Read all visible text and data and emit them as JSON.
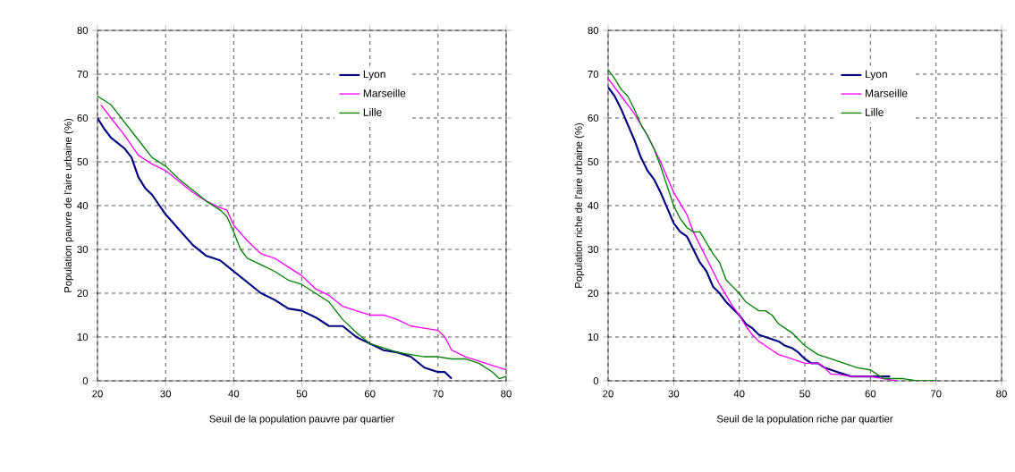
{
  "chart_data": [
    {
      "type": "line",
      "xlabel": "Seuil de la population pauvre par quartier",
      "ylabel": "Population pauvre de l'aire urbaine (%)",
      "xlim": [
        20,
        80
      ],
      "ylim": [
        0,
        80
      ],
      "xticks": [
        20,
        30,
        40,
        50,
        60,
        70,
        80
      ],
      "yticks": [
        0,
        10,
        20,
        30,
        40,
        50,
        60,
        70,
        80
      ],
      "grid": true,
      "legend": "top right",
      "marker": "none",
      "series": [
        {
          "name": "Lyon",
          "color": "#000080",
          "x": [
            20,
            21,
            22,
            24,
            25,
            26,
            27,
            28,
            30,
            32,
            34,
            36,
            38,
            40,
            42,
            44,
            46,
            48,
            50,
            52,
            54,
            56,
            58,
            60,
            62,
            64,
            66,
            68,
            70,
            71,
            72
          ],
          "values": [
            60,
            57.5,
            55.5,
            53,
            51,
            46.5,
            44,
            42.5,
            38,
            34.5,
            31,
            28.5,
            27.5,
            25,
            22.5,
            20,
            18.5,
            16.5,
            16,
            14.5,
            12.5,
            12.5,
            10,
            8.5,
            7,
            6.5,
            5.5,
            3,
            2,
            2,
            0.5
          ]
        },
        {
          "name": "Marseille",
          "color": "#ff00ff",
          "x": [
            20.5,
            22,
            24,
            26,
            28,
            30,
            32,
            34,
            36,
            38,
            39,
            40,
            42,
            44,
            46,
            48,
            50,
            52,
            54,
            56,
            58,
            60,
            62,
            64,
            66,
            68,
            70,
            71,
            72,
            74,
            76,
            78,
            80
          ],
          "values": [
            63,
            60,
            56,
            51.5,
            49.5,
            48,
            45.5,
            43,
            41,
            39.5,
            39,
            35.5,
            32,
            29,
            28,
            26,
            24,
            21,
            19.5,
            17,
            16,
            15,
            15,
            14,
            12.5,
            12,
            11.5,
            10,
            7,
            5.5,
            4.5,
            3.5,
            2.5
          ]
        },
        {
          "name": "Lille",
          "color": "#008000",
          "x": [
            20,
            22,
            24,
            26,
            28,
            30,
            32,
            34,
            36,
            38,
            39,
            40,
            41,
            42,
            44,
            46,
            48,
            50,
            52,
            54,
            56,
            58,
            60,
            62,
            64,
            66,
            68,
            70,
            72,
            74,
            76,
            78,
            79,
            80
          ],
          "values": [
            65,
            63,
            59,
            55,
            51,
            49,
            46,
            43.5,
            41,
            39,
            37.5,
            34,
            30,
            28,
            26.5,
            25,
            23,
            22,
            20,
            18,
            14,
            11,
            8.5,
            7.5,
            6.5,
            6,
            5.5,
            5.5,
            5,
            5,
            4,
            2,
            0.5,
            1
          ]
        }
      ]
    },
    {
      "type": "line",
      "xlabel": "Seuil de la population riche par quartier",
      "ylabel": "Population riche de l'aire urbaine (%)",
      "xlim": [
        20,
        80
      ],
      "ylim": [
        0,
        80
      ],
      "xticks": [
        20,
        30,
        40,
        50,
        60,
        70,
        80
      ],
      "yticks": [
        0,
        10,
        20,
        30,
        40,
        50,
        60,
        70,
        80
      ],
      "grid": true,
      "legend": "top right",
      "marker": "none",
      "series": [
        {
          "name": "Lyon",
          "color": "#000080",
          "x": [
            20,
            21,
            22,
            23,
            24,
            25,
            26,
            27,
            28,
            29,
            30,
            31,
            32,
            33,
            34,
            35,
            36,
            37,
            38,
            39,
            40,
            41,
            42,
            43,
            44,
            45,
            46,
            47,
            48,
            49,
            50,
            51,
            52,
            53,
            54,
            55,
            56,
            57,
            60,
            63
          ],
          "values": [
            67,
            65,
            62,
            58.5,
            55,
            51,
            48,
            46,
            43,
            39.5,
            36,
            34,
            33,
            30,
            27,
            25,
            21.5,
            20,
            18,
            16.5,
            15,
            13,
            12,
            10.5,
            10,
            9.5,
            9,
            8,
            7.5,
            6.5,
            5,
            4,
            4,
            3,
            2.5,
            2,
            1.5,
            1,
            1,
            1
          ]
        },
        {
          "name": "Marseille",
          "color": "#ff00ff",
          "x": [
            20,
            22,
            24,
            26,
            28,
            30,
            32,
            33,
            34,
            35,
            36,
            37,
            38,
            39,
            40,
            41,
            42,
            43,
            44,
            46,
            48,
            50,
            52,
            53,
            54,
            55,
            57,
            60,
            62,
            64
          ],
          "values": [
            69,
            65,
            61,
            56,
            50,
            43,
            38,
            34,
            31,
            28,
            25,
            22,
            19.5,
            17,
            15,
            12.5,
            10.5,
            9,
            8,
            6,
            5,
            4,
            4,
            3,
            1.5,
            1.5,
            1,
            1,
            0.5,
            0
          ]
        },
        {
          "name": "Lille",
          "color": "#008000",
          "x": [
            20,
            21,
            22,
            23,
            24,
            25,
            26,
            27,
            28,
            29,
            30,
            31,
            32,
            33,
            34,
            35,
            36,
            37,
            38,
            39,
            40,
            41,
            42,
            43,
            44,
            45,
            46,
            48,
            49,
            50,
            52,
            54,
            56,
            58,
            60,
            61,
            62,
            64,
            65,
            67,
            70
          ],
          "values": [
            71,
            69,
            66.5,
            65,
            62,
            58.5,
            56,
            53,
            49,
            44.5,
            40,
            37,
            35,
            34,
            34,
            31.5,
            29,
            27,
            23,
            21.5,
            20,
            18,
            17,
            16,
            16,
            15,
            13,
            11,
            9.5,
            8,
            6,
            5,
            4,
            3,
            2.5,
            1.5,
            0.5,
            0.5,
            0.5,
            0,
            0
          ]
        }
      ]
    }
  ]
}
